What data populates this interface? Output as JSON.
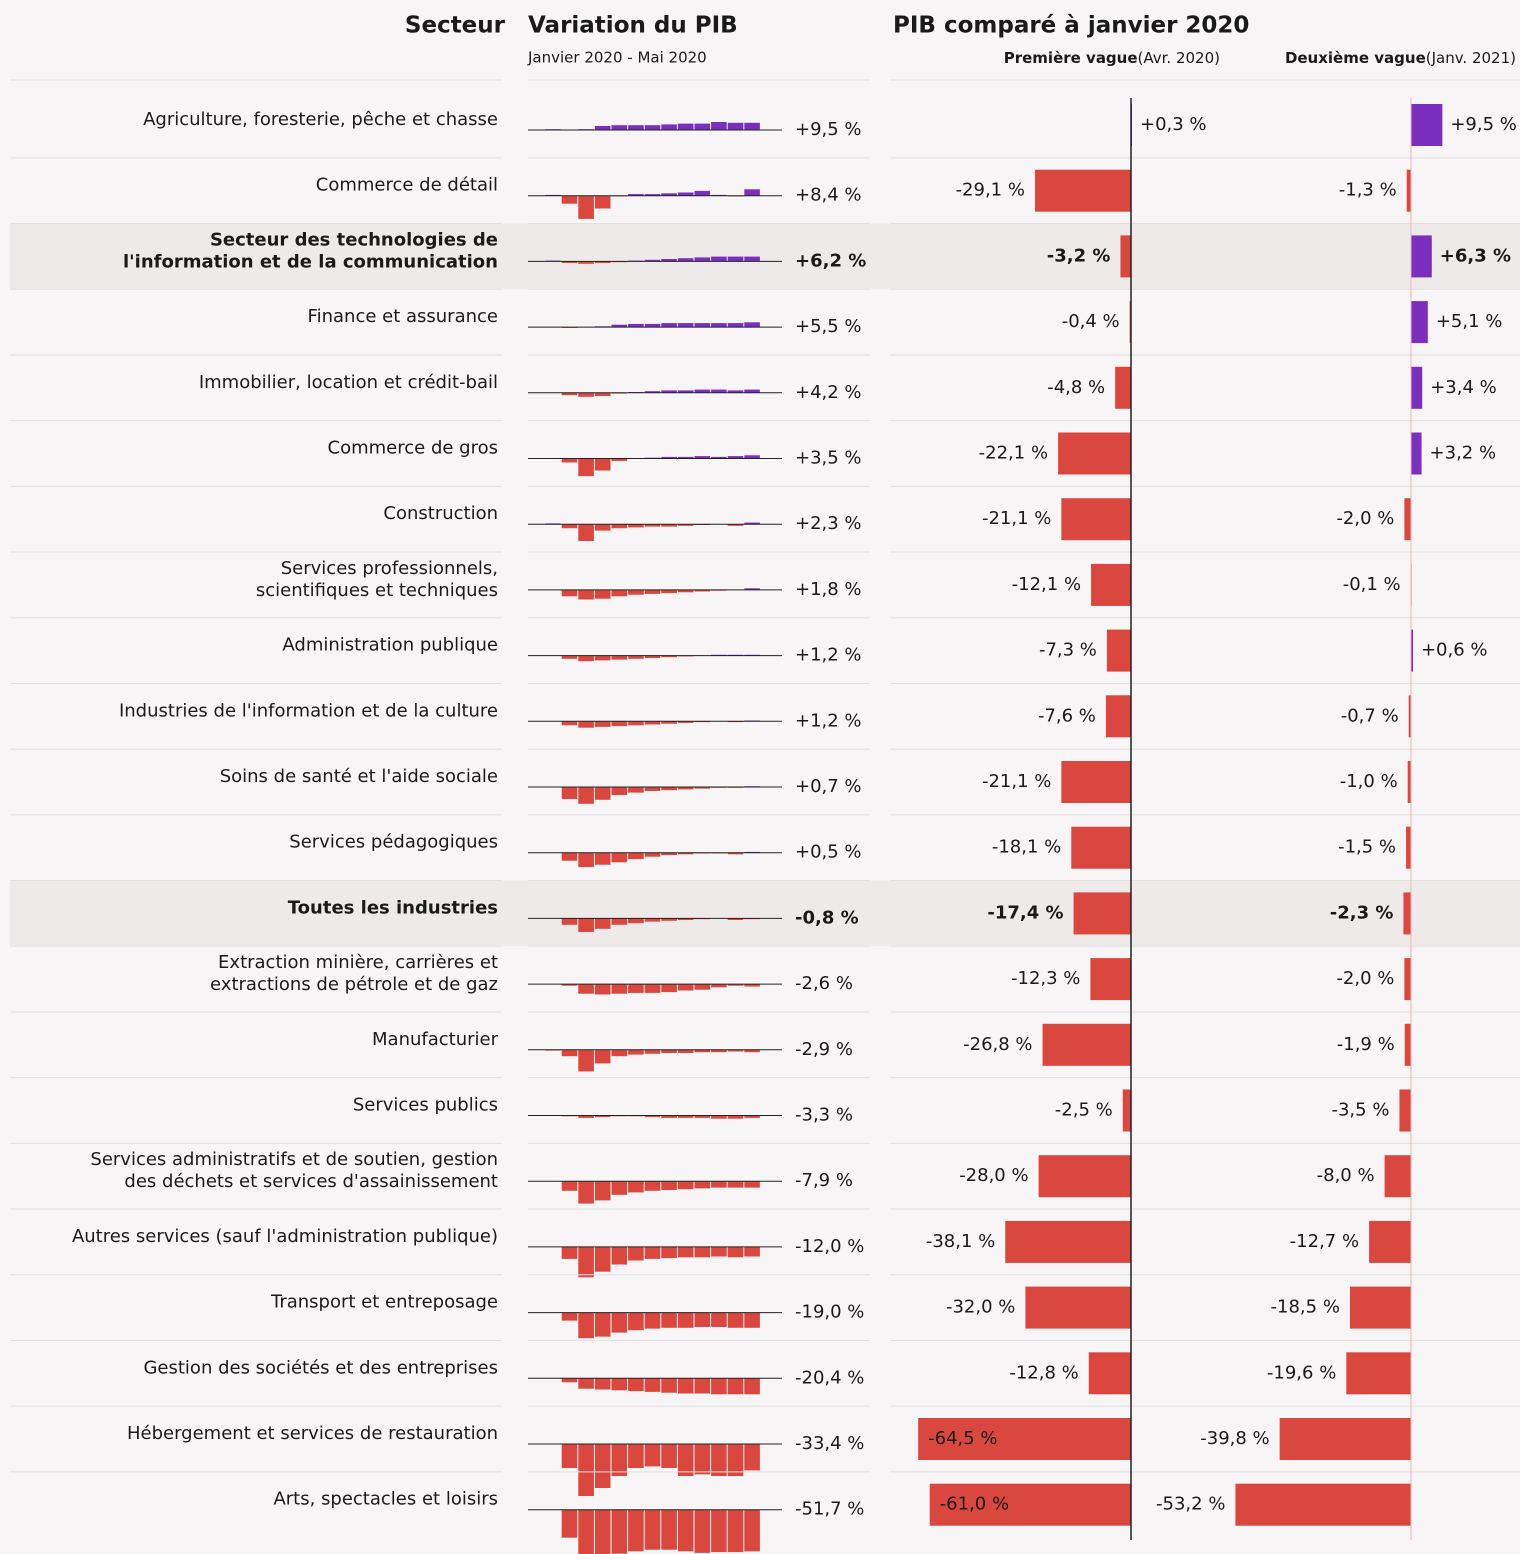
{
  "header": {
    "sector": "Secteur",
    "variation": "Variation du PIB",
    "variation_period": "Janvier 2020 - Mai 2020",
    "compare": "PIB comparé à janvier 2020",
    "first_wave": "Première vague",
    "first_wave_period": "(Avr. 2020)",
    "second_wave": "Deuxième vague",
    "second_wave_period": "(Janv. 2021)"
  },
  "colors": {
    "positive": "#7b2fbe",
    "negative": "#d9473f"
  },
  "rows": [
    {
      "sector": [
        "Agriculture, foresterie, pêche et chasse"
      ],
      "bold": false,
      "spark": [
        0,
        1,
        0,
        1,
        5,
        6,
        6,
        6,
        7,
        8,
        8,
        10,
        9,
        9
      ],
      "change": 9.5,
      "change_label": "+9,5 %",
      "first": 0.3,
      "first_label": "+0,3 %",
      "second": 9.5,
      "second_label": "+9,5 %"
    },
    {
      "sector": [
        "Commerce de détail"
      ],
      "bold": false,
      "spark": [
        0,
        1,
        -10,
        -29,
        -16,
        -1,
        2,
        2,
        3,
        4,
        6,
        1,
        -1,
        8
      ],
      "change": 8.4,
      "change_label": "+8,4 %",
      "first": -29.1,
      "first_label": "-29,1 %",
      "second": -1.3,
      "second_label": "-1,3 %"
    },
    {
      "sector": [
        "Secteur des technologies de",
        "l'information et de la communication"
      ],
      "bold": true,
      "spark": [
        0,
        1,
        -2,
        -3,
        -2,
        -1,
        1,
        2,
        3,
        4,
        5,
        6,
        6,
        6
      ],
      "change": 6.2,
      "change_label": "+6,2 %",
      "first": -3.2,
      "first_label": "-3,2 %",
      "second": 6.3,
      "second_label": "+6,3 %"
    },
    {
      "sector": [
        "Finance et assurance"
      ],
      "bold": false,
      "spark": [
        0,
        0,
        -1,
        0,
        1,
        3,
        4,
        4,
        5,
        5,
        5,
        5,
        5,
        6
      ],
      "change": 5.5,
      "change_label": "+5,5 %",
      "first": -0.4,
      "first_label": "-0,4 %",
      "second": 5.1,
      "second_label": "+5,1 %"
    },
    {
      "sector": [
        "Immobilier, location et crédit-bail"
      ],
      "bold": false,
      "spark": [
        0,
        0,
        -3,
        -5,
        -4,
        -1,
        1,
        2,
        3,
        3,
        4,
        4,
        3,
        4
      ],
      "change": 4.2,
      "change_label": "+4,2 %",
      "first": -4.8,
      "first_label": "-4,8 %",
      "second": 3.4,
      "second_label": "+3,4 %"
    },
    {
      "sector": [
        "Commerce de gros"
      ],
      "bold": false,
      "spark": [
        0,
        0,
        -5,
        -22,
        -15,
        -3,
        0,
        1,
        2,
        2,
        3,
        2,
        3,
        4
      ],
      "change": 3.5,
      "change_label": "+3,5 %",
      "first": -22.1,
      "first_label": "-22,1 %",
      "second": 3.2,
      "second_label": "+3,2 %"
    },
    {
      "sector": [
        "Construction"
      ],
      "bold": false,
      "spark": [
        0,
        1,
        -5,
        -21,
        -8,
        -5,
        -4,
        -3,
        -3,
        -2,
        -1,
        0,
        -2,
        2
      ],
      "change": 2.3,
      "change_label": "+2,3 %",
      "first": -21.1,
      "first_label": "-21,1 %",
      "second": -2.0,
      "second_label": "-2,0 %"
    },
    {
      "sector": [
        "Services professionnels,",
        "scientifiques et techniques"
      ],
      "bold": false,
      "spark": [
        0,
        0,
        -8,
        -12,
        -11,
        -8,
        -6,
        -5,
        -4,
        -3,
        -2,
        -1,
        0,
        2
      ],
      "change": 1.8,
      "change_label": "+1,8 %",
      "first": -12.1,
      "first_label": "-12,1 %",
      "second": -0.1,
      "second_label": "-0,1 %"
    },
    {
      "sector": [
        "Administration publique"
      ],
      "bold": false,
      "spark": [
        0,
        0,
        -4,
        -7,
        -6,
        -5,
        -4,
        -3,
        -2,
        -1,
        0,
        1,
        1,
        1
      ],
      "change": 1.2,
      "change_label": "+1,2 %",
      "first": -7.3,
      "first_label": "-7,3 %",
      "second": 0.6,
      "second_label": "+0,6 %"
    },
    {
      "sector": [
        "Industries de l'information et de la culture"
      ],
      "bold": false,
      "spark": [
        0,
        0,
        -5,
        -8,
        -7,
        -6,
        -5,
        -4,
        -3,
        -2,
        -1,
        0,
        -1,
        1
      ],
      "change": 1.2,
      "change_label": "+1,2 %",
      "first": -7.6,
      "first_label": "-7,6 %",
      "second": -0.7,
      "second_label": "-0,7 %"
    },
    {
      "sector": [
        "Soins de santé et l'aide sociale"
      ],
      "bold": false,
      "spark": [
        0,
        0,
        -15,
        -21,
        -16,
        -10,
        -7,
        -5,
        -4,
        -3,
        -2,
        -1,
        -1,
        1
      ],
      "change": 0.7,
      "change_label": "+0,7 %",
      "first": -21.1,
      "first_label": "-21,1 %",
      "second": -1.0,
      "second_label": "-1,0 %"
    },
    {
      "sector": [
        "Services pédagogiques"
      ],
      "bold": false,
      "spark": [
        0,
        0,
        -10,
        -18,
        -15,
        -12,
        -8,
        -5,
        -3,
        -2,
        -1,
        -1,
        -2,
        1
      ],
      "change": 0.5,
      "change_label": "+0,5 %",
      "first": -18.1,
      "first_label": "-18,1 %",
      "second": -1.5,
      "second_label": "-1,5 %"
    },
    {
      "sector": [
        "Toutes les industries"
      ],
      "bold": true,
      "spark": [
        0,
        0,
        -8,
        -17,
        -13,
        -8,
        -6,
        -4,
        -3,
        -2,
        -1,
        0,
        -2,
        -1
      ],
      "change": -0.8,
      "change_label": "-0,8 %",
      "first": -17.4,
      "first_label": "-17,4 %",
      "second": -2.3,
      "second_label": "-2,3 %"
    },
    {
      "sector": [
        "Extraction minière, carrières et",
        "extractions de pétrole et de gaz"
      ],
      "bold": false,
      "spark": [
        0,
        0,
        -2,
        -12,
        -13,
        -12,
        -11,
        -11,
        -10,
        -8,
        -7,
        -4,
        -2,
        -3
      ],
      "change": -2.6,
      "change_label": "-2,6 %",
      "first": -12.3,
      "first_label": "-12,3 %",
      "second": -2.0,
      "second_label": "-2,0 %"
    },
    {
      "sector": [
        "Manufacturier"
      ],
      "bold": false,
      "spark": [
        0,
        -1,
        -8,
        -27,
        -17,
        -8,
        -6,
        -5,
        -4,
        -4,
        -3,
        -3,
        -2,
        -3
      ],
      "change": -2.9,
      "change_label": "-2,9 %",
      "first": -26.8,
      "first_label": "-26,8 %",
      "second": -1.9,
      "second_label": "-1,9 %"
    },
    {
      "sector": [
        "Services publics"
      ],
      "bold": false,
      "spark": [
        0,
        0,
        -1,
        -3,
        -2,
        -1,
        -1,
        -2,
        -3,
        -3,
        -3,
        -4,
        -4,
        -3
      ],
      "change": -3.3,
      "change_label": "-3,3 %",
      "first": -2.5,
      "first_label": "-2,5 %",
      "second": -3.5,
      "second_label": "-3,5 %"
    },
    {
      "sector": [
        "Services administratifs et de soutien, gestion",
        "des déchets et services d'assainissement"
      ],
      "bold": false,
      "spark": [
        0,
        0,
        -12,
        -28,
        -24,
        -17,
        -14,
        -12,
        -11,
        -10,
        -9,
        -8,
        -8,
        -8
      ],
      "change": -7.9,
      "change_label": "-7,9 %",
      "first": -28.0,
      "first_label": "-28,0 %",
      "second": -8.0,
      "second_label": "-8,0 %"
    },
    {
      "sector": [
        "Autres services (sauf l'administration publique)"
      ],
      "bold": false,
      "spark": [
        0,
        0,
        -15,
        -38,
        -31,
        -22,
        -17,
        -15,
        -14,
        -13,
        -13,
        -12,
        -13,
        -12
      ],
      "change": -12.0,
      "change_label": "-12,0 %",
      "first": -38.1,
      "first_label": "-38,1 %",
      "second": -12.7,
      "second_label": "-12,7 %"
    },
    {
      "sector": [
        "Transport et entreposage"
      ],
      "bold": false,
      "spark": [
        0,
        0,
        -10,
        -32,
        -30,
        -25,
        -22,
        -20,
        -19,
        -19,
        -18,
        -18,
        -19,
        -19
      ],
      "change": -19.0,
      "change_label": "-19,0 %",
      "first": -32.0,
      "first_label": "-32,0 %",
      "second": -18.5,
      "second_label": "-18,5 %"
    },
    {
      "sector": [
        "Gestion des sociétés et des entreprises"
      ],
      "bold": false,
      "spark": [
        0,
        0,
        -5,
        -13,
        -14,
        -15,
        -16,
        -17,
        -18,
        -19,
        -19,
        -20,
        -20,
        -20
      ],
      "change": -20.4,
      "change_label": "-20,4 %",
      "first": -12.8,
      "first_label": "-12,8 %",
      "second": -19.6,
      "second_label": "-19,6 %"
    },
    {
      "sector": [
        "Hébergement et services de restauration"
      ],
      "bold": false,
      "spark": [
        0,
        0,
        -30,
        -65,
        -55,
        -40,
        -30,
        -28,
        -30,
        -40,
        -38,
        -40,
        -40,
        -33
      ],
      "change": -33.4,
      "change_label": "-33,4 %",
      "first": -64.5,
      "first_label": "-64,5 %",
      "second": -39.8,
      "second_label": "-39,8 %"
    },
    {
      "sector": [
        "Arts, spectacles et loisirs"
      ],
      "bold": false,
      "spark": [
        0,
        0,
        -35,
        -61,
        -60,
        -55,
        -52,
        -50,
        -50,
        -52,
        -54,
        -53,
        -53,
        -52
      ],
      "change": -51.7,
      "change_label": "-51,7 %",
      "first": -61.0,
      "first_label": "-61,0 %",
      "second": -53.2,
      "second_label": "-53,2 %"
    }
  ]
}
